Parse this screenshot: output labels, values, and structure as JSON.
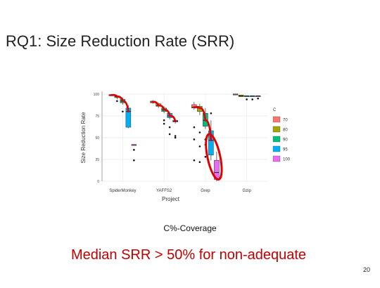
{
  "slide": {
    "title": "RQ1: Size Reduction Rate (SRR)",
    "caption": "C%-Coverage",
    "conclusion": "Median SRR > 50% for non-adequate",
    "page_number": "20"
  },
  "chart_data": {
    "type": "box",
    "xlabel": "Project",
    "ylabel": "Size Reduction Rate",
    "ylim": [
      0,
      100
    ],
    "yticks": [
      0,
      25,
      50,
      75,
      100
    ],
    "categories": [
      "SpiderMonkey",
      "YAFFS2",
      "Grep",
      "Gzip"
    ],
    "legend_title": "C",
    "legend_position": "right",
    "grid": true,
    "series": [
      {
        "name": "70",
        "color": "#f8766d"
      },
      {
        "name": "80",
        "color": "#a3a500"
      },
      {
        "name": "90",
        "color": "#00bf7d"
      },
      {
        "name": "95",
        "color": "#00b0f6"
      },
      {
        "name": "100",
        "color": "#e76bf3"
      }
    ],
    "boxes": [
      {
        "category": "SpiderMonkey",
        "series": "70",
        "min": 98,
        "q1": 98,
        "median": 99,
        "q3": 99.5,
        "max": 100
      },
      {
        "category": "SpiderMonkey",
        "series": "80",
        "min": 94,
        "q1": 96,
        "median": 97,
        "q3": 98,
        "max": 99
      },
      {
        "category": "SpiderMonkey",
        "series": "90",
        "min": 88,
        "q1": 90,
        "median": 92,
        "q3": 94,
        "max": 96
      },
      {
        "category": "SpiderMonkey",
        "series": "95",
        "min": 61,
        "q1": 62,
        "median": 80,
        "q3": 84,
        "max": 87
      },
      {
        "category": "SpiderMonkey",
        "series": "100",
        "min": 42,
        "q1": 42,
        "median": 42,
        "q3": 42,
        "max": 42
      },
      {
        "category": "YAFFS2",
        "series": "70",
        "min": 89,
        "q1": 90,
        "median": 91,
        "q3": 92,
        "max": 93
      },
      {
        "category": "YAFFS2",
        "series": "80",
        "min": 84,
        "q1": 86,
        "median": 87,
        "q3": 89,
        "max": 90
      },
      {
        "category": "YAFFS2",
        "series": "90",
        "min": 78,
        "q1": 80,
        "median": 82,
        "q3": 84,
        "max": 86
      },
      {
        "category": "YAFFS2",
        "series": "95",
        "min": 71,
        "q1": 73,
        "median": 75,
        "q3": 78,
        "max": 80
      },
      {
        "category": "YAFFS2",
        "series": "100",
        "min": 66,
        "q1": 68,
        "median": 69,
        "q3": 70,
        "max": 71
      },
      {
        "category": "Grep",
        "series": "70",
        "min": 82,
        "q1": 84,
        "median": 85,
        "q3": 88,
        "max": 91
      },
      {
        "category": "Grep",
        "series": "80",
        "min": 76,
        "q1": 80,
        "median": 84,
        "q3": 86,
        "max": 89
      },
      {
        "category": "Grep",
        "series": "90",
        "min": 60,
        "q1": 63,
        "median": 70,
        "q3": 78,
        "max": 84
      },
      {
        "category": "Grep",
        "series": "95",
        "min": 24,
        "q1": 30,
        "median": 47,
        "q3": 58,
        "max": 70
      },
      {
        "category": "Grep",
        "series": "100",
        "min": 0,
        "q1": 2,
        "median": 10,
        "q3": 24,
        "max": 34
      },
      {
        "category": "Gzip",
        "series": "70",
        "min": 99,
        "q1": 99,
        "median": 100,
        "q3": 100,
        "max": 100
      },
      {
        "category": "Gzip",
        "series": "80",
        "min": 97,
        "q1": 97,
        "median": 98,
        "q3": 99,
        "max": 99
      },
      {
        "category": "Gzip",
        "series": "90",
        "min": 97,
        "q1": 97,
        "median": 98,
        "q3": 98,
        "max": 98
      },
      {
        "category": "Gzip",
        "series": "95",
        "min": 97,
        "q1": 97,
        "median": 98,
        "q3": 98,
        "max": 98
      },
      {
        "category": "Gzip",
        "series": "100",
        "min": 97,
        "q1": 97,
        "median": 98,
        "q3": 98,
        "max": 98
      }
    ],
    "outliers": [
      {
        "category": "SpiderMonkey",
        "series": "80",
        "value": 92
      },
      {
        "category": "SpiderMonkey",
        "series": "90",
        "value": 80
      },
      {
        "category": "SpiderMonkey",
        "series": "100",
        "value": 36
      },
      {
        "category": "SpiderMonkey",
        "series": "100",
        "value": 24
      },
      {
        "category": "YAFFS2",
        "series": "90",
        "value": 70
      },
      {
        "category": "YAFFS2",
        "series": "90",
        "value": 66
      },
      {
        "category": "YAFFS2",
        "series": "95",
        "value": 62
      },
      {
        "category": "YAFFS2",
        "series": "95",
        "value": 54
      },
      {
        "category": "YAFFS2",
        "series": "100",
        "value": 52
      },
      {
        "category": "YAFFS2",
        "series": "100",
        "value": 50
      },
      {
        "category": "Grep",
        "series": "70",
        "value": 62
      },
      {
        "category": "Grep",
        "series": "70",
        "value": 48
      },
      {
        "category": "Grep",
        "series": "70",
        "value": 24
      },
      {
        "category": "Grep",
        "series": "80",
        "value": 56
      },
      {
        "category": "Grep",
        "series": "80",
        "value": 40
      },
      {
        "category": "Grep",
        "series": "80",
        "value": 22
      },
      {
        "category": "Grep",
        "series": "90",
        "value": 48
      },
      {
        "category": "Grep",
        "series": "90",
        "value": 42
      },
      {
        "category": "Grep",
        "series": "90",
        "value": 28
      },
      {
        "category": "Grep",
        "series": "95",
        "value": 78
      },
      {
        "category": "Gzip",
        "series": "90",
        "value": 94
      },
      {
        "category": "Gzip",
        "series": "95",
        "value": 94
      },
      {
        "category": "Gzip",
        "series": "100",
        "value": 95
      }
    ],
    "annotation_color": "#e00000"
  }
}
